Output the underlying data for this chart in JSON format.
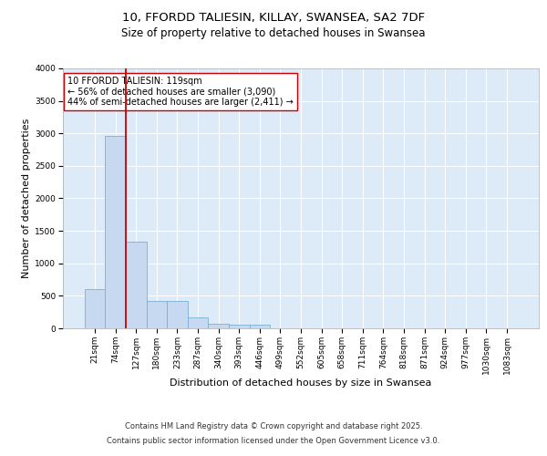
{
  "title_line1": "10, FFORDD TALIESIN, KILLAY, SWANSEA, SA2 7DF",
  "title_line2": "Size of property relative to detached houses in Swansea",
  "xlabel": "Distribution of detached houses by size in Swansea",
  "ylabel": "Number of detached properties",
  "categories": [
    "21sqm",
    "74sqm",
    "127sqm",
    "180sqm",
    "233sqm",
    "287sqm",
    "340sqm",
    "393sqm",
    "446sqm",
    "499sqm",
    "552sqm",
    "605sqm",
    "658sqm",
    "711sqm",
    "764sqm",
    "818sqm",
    "871sqm",
    "924sqm",
    "977sqm",
    "1030sqm",
    "1083sqm"
  ],
  "bar_heights": [
    600,
    2960,
    1330,
    420,
    420,
    165,
    75,
    50,
    50,
    0,
    0,
    0,
    0,
    0,
    0,
    0,
    0,
    0,
    0,
    0,
    0
  ],
  "bar_color": "#c6d9f0",
  "bar_edgecolor": "#7bafd4",
  "vline_color": "#cc0000",
  "ylim": [
    0,
    4000
  ],
  "yticks": [
    0,
    500,
    1000,
    1500,
    2000,
    2500,
    3000,
    3500,
    4000
  ],
  "annotation_text": "10 FFORDD TALIESIN: 119sqm\n← 56% of detached houses are smaller (3,090)\n44% of semi-detached houses are larger (2,411) →",
  "footer_line1": "Contains HM Land Registry data © Crown copyright and database right 2025.",
  "footer_line2": "Contains public sector information licensed under the Open Government Licence v3.0.",
  "background_color": "#ddeaf7",
  "grid_color": "#ffffff",
  "fig_bg": "#ffffff",
  "title_fontsize": 9.5,
  "subtitle_fontsize": 8.5,
  "label_fontsize": 8,
  "tick_fontsize": 6.5,
  "footer_fontsize": 6,
  "ann_fontsize": 7
}
